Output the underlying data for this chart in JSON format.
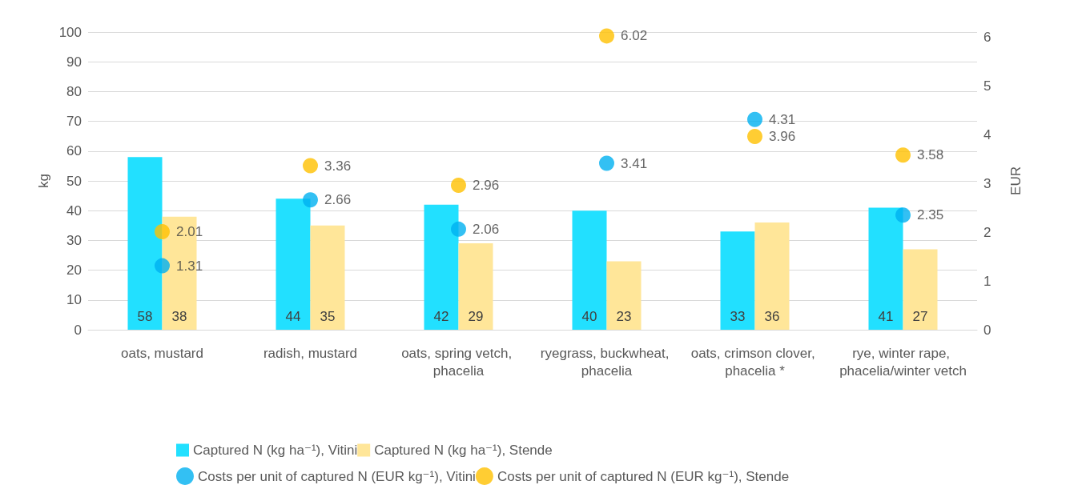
{
  "chart_data": {
    "type": "bar",
    "categories": [
      "oats, mustard",
      "radish, mustard",
      "oats, spring vetch, phacelia",
      "ryegrass, buckwheat, phacelia",
      "oats, crimson clover, phacelia *",
      "rye, winter rape, phacelia/winter vetch"
    ],
    "series": [
      {
        "name": "Captured N (kg ha⁻¹), Vitini",
        "color": "#22e0ff",
        "values": [
          58,
          44,
          42,
          40,
          33,
          41
        ]
      },
      {
        "name": "Captured N (kg ha⁻¹), Stende",
        "color": "#ffe699",
        "values": [
          38,
          35,
          29,
          23,
          36,
          27
        ]
      },
      {
        "name": "Costs per unit of captured N (EUR kg⁻¹), Vitini",
        "type": "scatter",
        "axis": "y2",
        "color": "#00b0f0",
        "x": [
          "oats, mustard",
          "radish, mustard",
          "oats, spring vetch, phacelia",
          "ryegrass, buckwheat, phacelia",
          "oats, crimson clover, phacelia *",
          "rye, winter rape, phacelia/winter vetch"
        ],
        "values": [
          1.31,
          2.66,
          2.06,
          3.41,
          4.31,
          2.35
        ]
      },
      {
        "name": "Costs per unit of captured N (EUR kg⁻¹), Stende",
        "type": "scatter",
        "axis": "y2",
        "color": "#ffc000",
        "x": [
          "oats, mustard",
          "radish, mustard",
          "oats, spring vetch, phacelia",
          "ryegrass, buckwheat, phacelia",
          "oats, crimson clover, phacelia *",
          "rye, winter rape, phacelia/winter vetch"
        ],
        "values": [
          2.01,
          3.36,
          2.96,
          6.02,
          3.96,
          3.58
        ]
      }
    ],
    "ylabel": "kg",
    "y2label": "EUR",
    "ylim": [
      0,
      100
    ],
    "yticks": [
      0,
      10,
      20,
      30,
      40,
      50,
      60,
      70,
      80,
      90,
      100
    ],
    "y2lim": [
      0,
      6.1
    ],
    "y2ticks": [
      0,
      1,
      2,
      3,
      4,
      5,
      6
    ],
    "grid": "y",
    "legend": "bottom",
    "marker": "circle",
    "data_labels": true
  }
}
